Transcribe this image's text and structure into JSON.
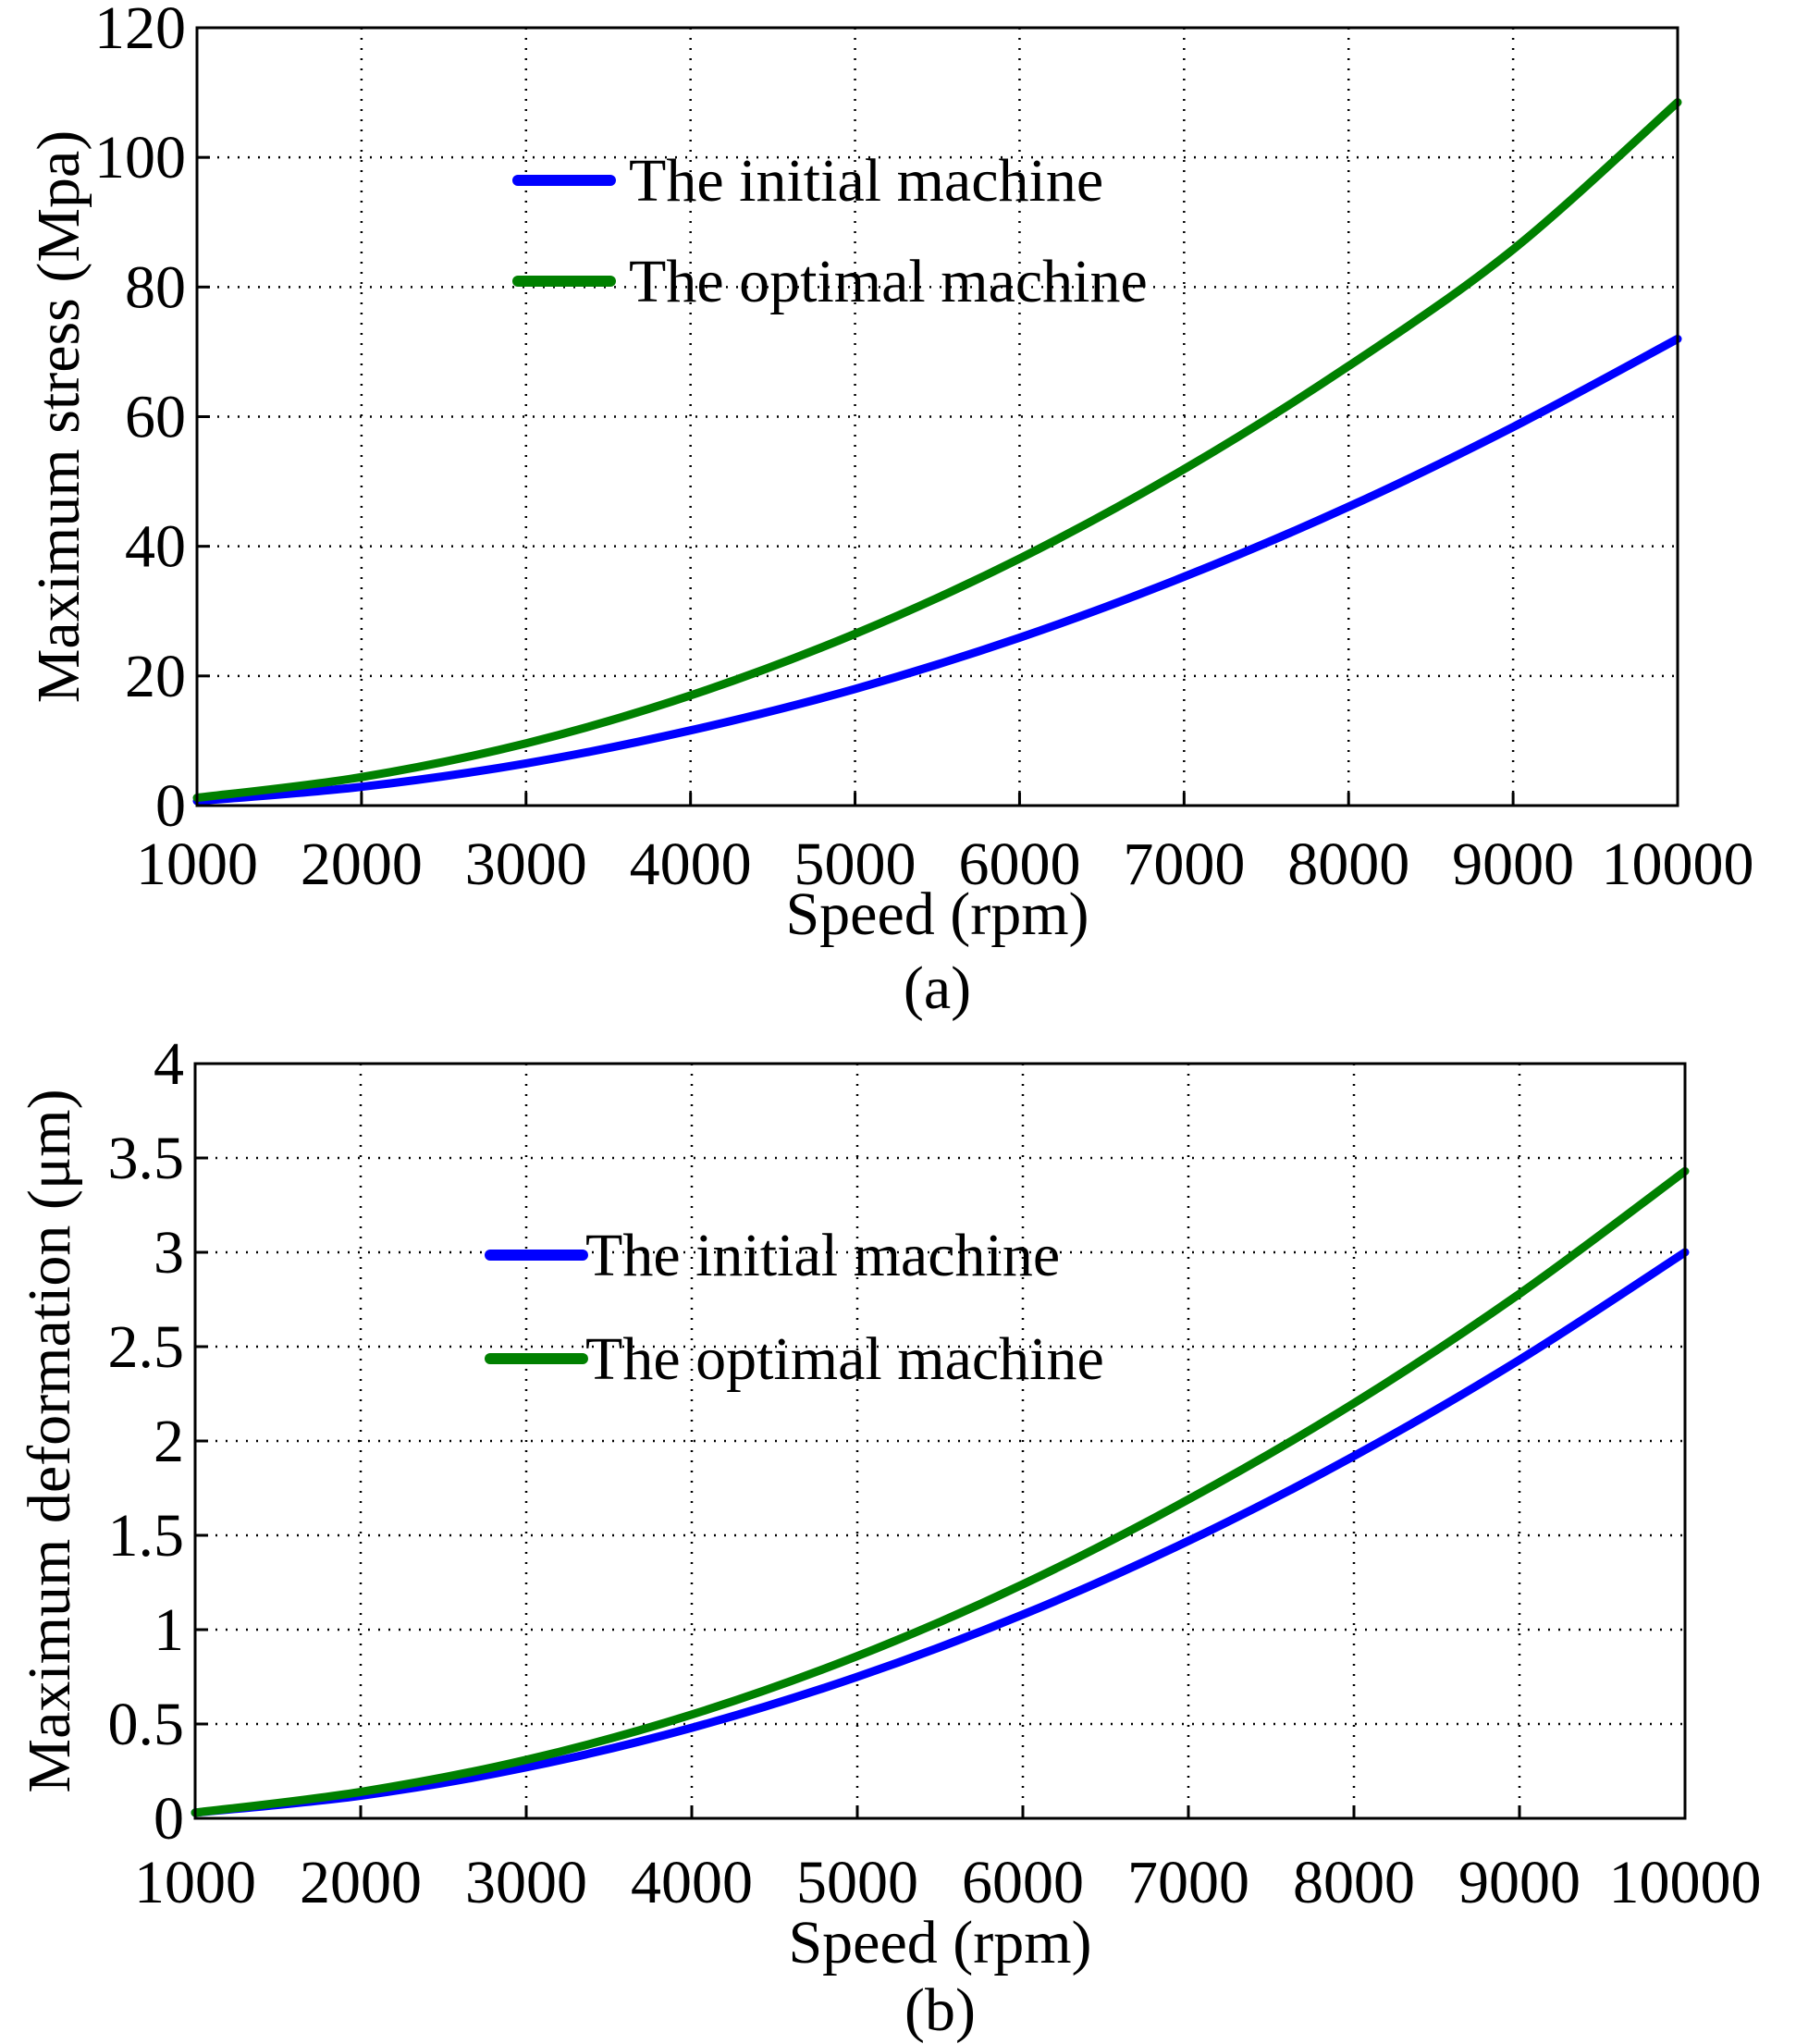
{
  "chart_data": [
    {
      "type": "line",
      "title": "",
      "caption": "(a)",
      "xlabel": "Speed (rpm)",
      "ylabel": "Maximum stress (Mpa)",
      "xlim": [
        1000,
        10000
      ],
      "ylim": [
        0,
        120
      ],
      "xticks": [
        "1000",
        "2000",
        "3000",
        "4000",
        "5000",
        "6000",
        "7000",
        "8000",
        "9000",
        "10000"
      ],
      "yticks": [
        "0",
        "20",
        "40",
        "60",
        "80",
        "100",
        "120"
      ],
      "grid": true,
      "legend_position": "top-center",
      "x": [
        1000,
        2000,
        3000,
        4000,
        5000,
        6000,
        7000,
        8000,
        9000,
        10000
      ],
      "series": [
        {
          "name": "The initial machine",
          "color": "#0000ff",
          "values": [
            0.7,
            2.9,
            6.5,
            11.6,
            18.0,
            25.9,
            35.3,
            46.1,
            58.4,
            72.0
          ]
        },
        {
          "name": "The optimal machine",
          "color": "#008000",
          "values": [
            1.2,
            4.4,
            9.6,
            17.0,
            26.5,
            38.1,
            51.9,
            67.8,
            85.8,
            108.5
          ]
        }
      ]
    },
    {
      "type": "line",
      "title": "",
      "caption": "(b)",
      "xlabel": "Speed (rpm)",
      "ylabel": "Maximum deformation (μm)",
      "xlim": [
        1000,
        10000
      ],
      "ylim": [
        0,
        4
      ],
      "xticks": [
        "1000",
        "2000",
        "3000",
        "4000",
        "5000",
        "6000",
        "7000",
        "8000",
        "9000",
        "10000"
      ],
      "yticks": [
        "0",
        "0.5",
        "1",
        "1.5",
        "2",
        "2.5",
        "3",
        "3.5",
        "4"
      ],
      "grid": true,
      "legend_position": "top-center",
      "x": [
        1000,
        2000,
        3000,
        4000,
        5000,
        6000,
        7000,
        8000,
        9000,
        10000
      ],
      "series": [
        {
          "name": "The initial machine",
          "color": "#0000ff",
          "values": [
            0.03,
            0.12,
            0.27,
            0.48,
            0.75,
            1.08,
            1.47,
            1.92,
            2.43,
            3.0
          ]
        },
        {
          "name": "The optimal machine",
          "color": "#008000",
          "values": [
            0.03,
            0.14,
            0.31,
            0.55,
            0.86,
            1.24,
            1.69,
            2.2,
            2.78,
            3.43
          ]
        }
      ]
    }
  ]
}
